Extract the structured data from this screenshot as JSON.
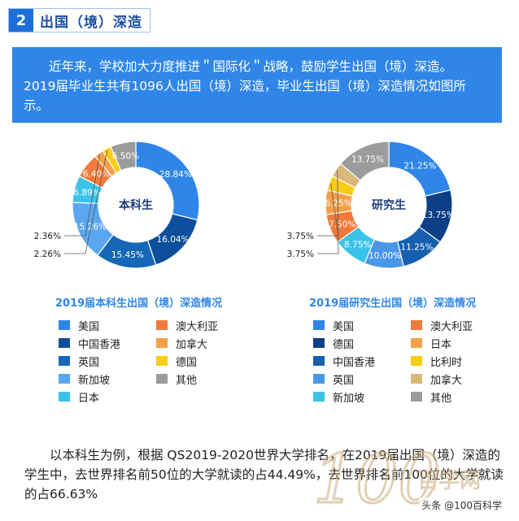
{
  "section": {
    "number": "2",
    "title": "出国（境）深造"
  },
  "intro": {
    "line1": "近年来，学校加大力度推进＂国际化＂战略，鼓励学生出国（境）深造。",
    "line2": "2019届毕业生共有1096人出国（境）深造，毕业生出国（境）深造情况如图所示。"
  },
  "chart_data": [
    {
      "type": "pie",
      "donut": true,
      "center_label": "本科生",
      "title": "2019届本科生出国（境）深造情况",
      "slices": [
        {
          "name": "美国",
          "value": 28.84,
          "label": "28.84%",
          "color": "#2f86e8"
        },
        {
          "name": "中国香港",
          "value": 16.04,
          "label": "16.04%",
          "color": "#0e4f9c"
        },
        {
          "name": "英国",
          "value": 15.45,
          "label": "15.45%",
          "color": "#1667b8"
        },
        {
          "name": "新加坡",
          "value": 15.26,
          "label": "15.26%",
          "color": "#5aa7f0"
        },
        {
          "name": "日本",
          "value": 6.89,
          "label": "6.89%",
          "color": "#3cc3ea"
        },
        {
          "name": "澳大利亚",
          "value": 6.4,
          "label": "6.40%",
          "color": "#f07a3c"
        },
        {
          "name": "加拿大",
          "value": 2.36,
          "label": "2.36%",
          "color": "#f5a048"
        },
        {
          "name": "德国",
          "value": 2.26,
          "label": "2.26%",
          "color": "#f8cd16"
        },
        {
          "name": "其他",
          "value": 6.5,
          "label": "6.50%",
          "color": "#9c9c9c"
        }
      ]
    },
    {
      "type": "pie",
      "donut": true,
      "center_label": "研究生",
      "title": "2019届研究生出国（境）深造情况",
      "slices": [
        {
          "name": "美国",
          "value": 21.25,
          "label": "21.25%",
          "color": "#2f86e8"
        },
        {
          "name": "德国",
          "value": 13.75,
          "label": "13.75%",
          "color": "#0c3f86"
        },
        {
          "name": "中国香港",
          "value": 11.25,
          "label": "11.25%",
          "color": "#155fae"
        },
        {
          "name": "英国",
          "value": 10.0,
          "label": "10.00%",
          "color": "#4a97e6"
        },
        {
          "name": "新加坡",
          "value": 8.75,
          "label": "8.75%",
          "color": "#3cc3ea"
        },
        {
          "name": "澳大利亚",
          "value": 7.5,
          "label": "7.50%",
          "color": "#f07a3c"
        },
        {
          "name": "日本",
          "value": 6.25,
          "label": "6.25%",
          "color": "#f5a048"
        },
        {
          "name": "比利时",
          "value": 3.75,
          "label": "3.75%",
          "color": "#f8cd16"
        },
        {
          "name": "加拿大",
          "value": 3.75,
          "label": "3.75%",
          "color": "#d9b878"
        },
        {
          "name": "其他",
          "value": 13.75,
          "label": "13.75%",
          "color": "#9c9c9c"
        }
      ]
    }
  ],
  "legend_left": [
    {
      "name": "美国",
      "color": "#2f86e8"
    },
    {
      "name": "澳大利亚",
      "color": "#f07a3c"
    },
    {
      "name": "中国香港",
      "color": "#0e4f9c"
    },
    {
      "name": "加拿大",
      "color": "#f5a048"
    },
    {
      "name": "英国",
      "color": "#1667b8"
    },
    {
      "name": "德国",
      "color": "#f8cd16"
    },
    {
      "name": "新加坡",
      "color": "#5aa7f0"
    },
    {
      "name": "其他",
      "color": "#9c9c9c"
    },
    {
      "name": "日本",
      "color": "#3cc3ea"
    }
  ],
  "legend_right": [
    {
      "name": "美国",
      "color": "#2f86e8"
    },
    {
      "name": "澳大利亚",
      "color": "#f07a3c"
    },
    {
      "name": "德国",
      "color": "#0c3f86"
    },
    {
      "name": "日本",
      "color": "#f5a048"
    },
    {
      "name": "中国香港",
      "color": "#155fae"
    },
    {
      "name": "比利时",
      "color": "#f8cd16"
    },
    {
      "name": "英国",
      "color": "#4a97e6"
    },
    {
      "name": "加拿大",
      "color": "#d9b878"
    },
    {
      "name": "新加坡",
      "color": "#3cc3ea"
    },
    {
      "name": "其他",
      "color": "#9c9c9c"
    }
  ],
  "footer": {
    "text": "以本科生为例，根据 QS2019-2020世界大学排名，在2019届出国（境）深造的学生中，去世界排名前50位的大学就读的占44.49%，去世界排名前100位的大学就读的占66.63%"
  },
  "watermark": {
    "brand": "100百学网"
  },
  "source": {
    "text": "头条 @100百科学"
  }
}
